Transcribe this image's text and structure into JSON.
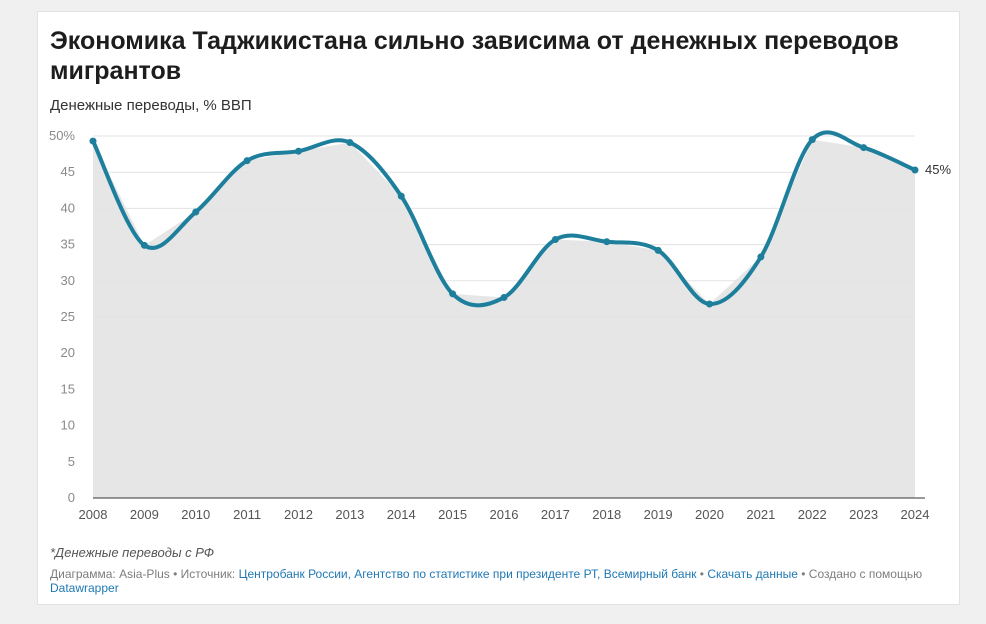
{
  "title": "Экономика Таджикистана сильно зависима от денежных переводов мигрантов",
  "subtitle": "Денежные переводы, % ВВП",
  "notes": "*Денежные переводы с РФ",
  "footer": {
    "chart_label": "Диаграмма:",
    "chart_by": "Asia-Plus",
    "sep1": "•",
    "source_label": "Источник:",
    "source": "Центробанк России, Агентство по статистике при президенте РТ, Всемирный банк",
    "sep2": "•",
    "download": "Скачать данные",
    "sep3": "•",
    "created_with": "Создано с помощью",
    "tool": "Datawrapper"
  },
  "colors": {
    "line": "#1d7f9c",
    "area": "#e6e6e6",
    "grid": "#e3e3e3"
  },
  "chart_data": {
    "type": "line",
    "x": [
      2008,
      2009,
      2010,
      2011,
      2012,
      2013,
      2014,
      2015,
      2016,
      2017,
      2018,
      2019,
      2020,
      2021,
      2022,
      2023,
      2024
    ],
    "series": [
      {
        "values": [
          49.3,
          34.9,
          39.5,
          46.6,
          47.9,
          49.1,
          41.7,
          28.2,
          27.7,
          35.7,
          35.4,
          34.2,
          26.8,
          33.3,
          49.5,
          48.4,
          45.3
        ]
      }
    ],
    "y_ticks": [
      "50%",
      "45",
      "40",
      "35",
      "30",
      "25",
      "20",
      "15",
      "10",
      "5",
      "0"
    ],
    "ylim": [
      0,
      50
    ],
    "end_label": "45%",
    "grid": true,
    "area_fill": true
  }
}
